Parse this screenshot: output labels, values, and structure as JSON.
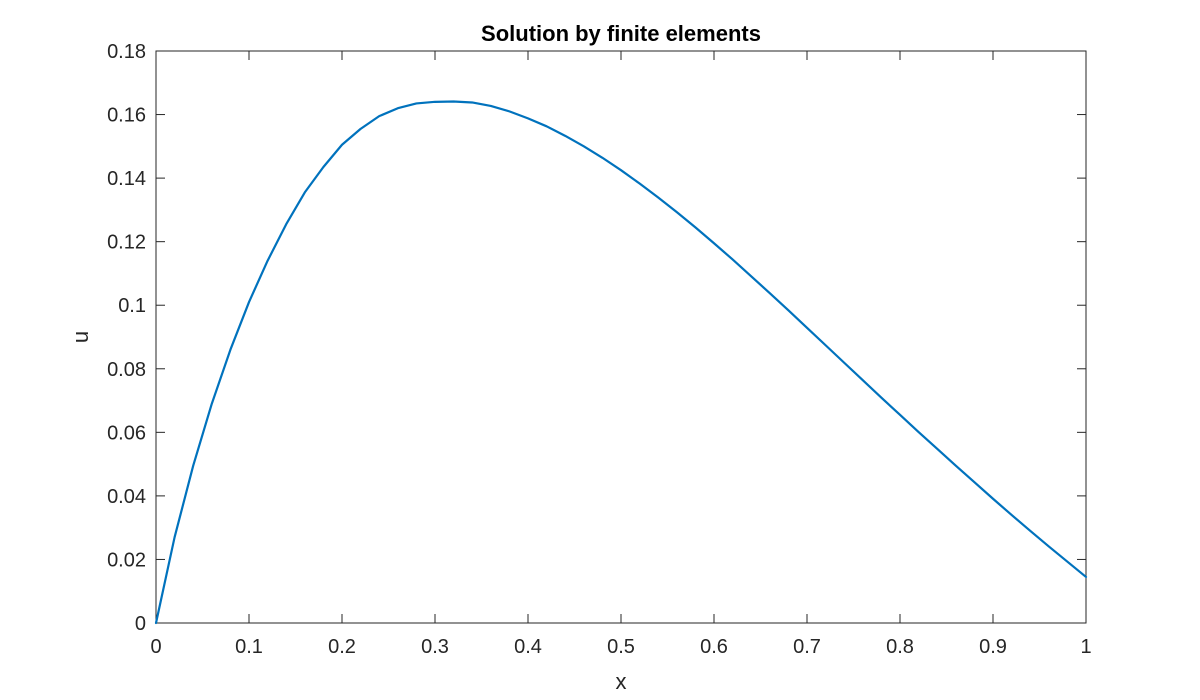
{
  "chart_data": {
    "type": "line",
    "title": "Solution by finite elements",
    "xlabel": "x",
    "ylabel": "u",
    "xlim": [
      0,
      1
    ],
    "ylim": [
      0,
      0.18
    ],
    "x_ticks": [
      "0",
      "0.1",
      "0.2",
      "0.3",
      "0.4",
      "0.5",
      "0.6",
      "0.7",
      "0.8",
      "0.9",
      "1"
    ],
    "y_ticks": [
      "0",
      "0.02",
      "0.04",
      "0.06",
      "0.08",
      "0.1",
      "0.12",
      "0.14",
      "0.16",
      "0.18"
    ],
    "grid": false,
    "line_color": "#0072BD",
    "series": [
      {
        "x": [
          0,
          0.02,
          0.04,
          0.06,
          0.08,
          0.1,
          0.12,
          0.14,
          0.16,
          0.18,
          0.2,
          0.22,
          0.24,
          0.26,
          0.28,
          0.3,
          0.32,
          0.34,
          0.36,
          0.38,
          0.4,
          0.42,
          0.44,
          0.46,
          0.48,
          0.5,
          0.52,
          0.54,
          0.56,
          0.58,
          0.6,
          0.62,
          0.64,
          0.66,
          0.68,
          0.7,
          0.72,
          0.74,
          0.76,
          0.78,
          0.8,
          0.82,
          0.84,
          0.86,
          0.88,
          0.9,
          0.92,
          0.94,
          0.96,
          0.98,
          1.0
        ],
        "values": [
          0,
          0.027,
          0.0495,
          0.069,
          0.086,
          0.101,
          0.114,
          0.1255,
          0.1355,
          0.1435,
          0.1505,
          0.1555,
          0.1595,
          0.162,
          0.1635,
          0.164,
          0.1641,
          0.1638,
          0.1627,
          0.161,
          0.1588,
          0.1563,
          0.1533,
          0.15,
          0.1464,
          0.1425,
          0.1383,
          0.1339,
          0.1293,
          0.1245,
          0.1195,
          0.1144,
          0.1091,
          0.1038,
          0.0984,
          0.0929,
          0.0874,
          0.0819,
          0.0764,
          0.0709,
          0.0655,
          0.0601,
          0.0548,
          0.0495,
          0.0443,
          0.0391,
          0.034,
          0.029,
          0.0241,
          0.0193,
          0.0145
        ]
      }
    ]
  }
}
